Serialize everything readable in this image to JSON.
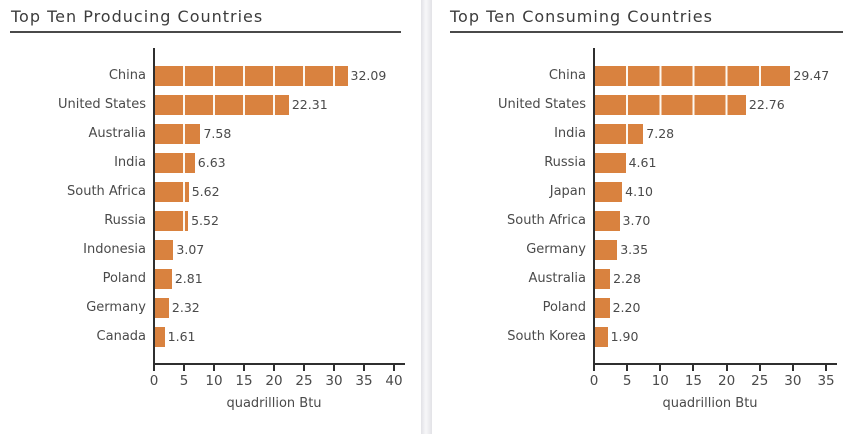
{
  "page": {
    "background": "#ffffff"
  },
  "colors": {
    "bar_fill": "#D9823F",
    "bar_segment_gap": "#FDF8F1",
    "axis_line": "#2F2F2F",
    "label_text": "#4A4A4A",
    "title_text": "#3C3C3C",
    "title_rule": "#4A4A4A",
    "panel_divider": "#E7E7EB"
  },
  "chart_data": [
    {
      "type": "bar",
      "orientation": "horizontal",
      "title": "Top Ten Producing Countries",
      "xlabel": "quadrillion Btu",
      "ylabel": "",
      "xlim": [
        0,
        40
      ],
      "xticks": [
        0,
        5,
        10,
        15,
        20,
        25,
        30,
        35,
        40
      ],
      "grid": false,
      "legend": "none",
      "bar_segment_unit": 5,
      "categories": [
        "China",
        "United States",
        "Australia",
        "India",
        "South Africa",
        "Russia",
        "Indonesia",
        "Poland",
        "Germany",
        "Canada"
      ],
      "values": [
        32.09,
        22.31,
        7.58,
        6.63,
        5.62,
        5.52,
        3.07,
        2.81,
        2.32,
        1.61
      ],
      "value_labels": [
        "32.09",
        "22.31",
        "7.58",
        "6.63",
        "5.62",
        "5.52",
        "3.07",
        "2.81",
        "2.32",
        "1.61"
      ]
    },
    {
      "type": "bar",
      "orientation": "horizontal",
      "title": "Top Ten Consuming Countries",
      "xlabel": "quadrillion Btu",
      "ylabel": "",
      "xlim": [
        0,
        35
      ],
      "xticks": [
        0,
        5,
        10,
        15,
        20,
        25,
        30,
        35
      ],
      "grid": false,
      "legend": "none",
      "bar_segment_unit": 5,
      "categories": [
        "China",
        "United States",
        "India",
        "Russia",
        "Japan",
        "South Africa",
        "Germany",
        "Australia",
        "Poland",
        "South Korea"
      ],
      "values": [
        29.47,
        22.76,
        7.28,
        4.61,
        4.1,
        3.7,
        3.35,
        2.28,
        2.2,
        1.9
      ],
      "value_labels": [
        "29.47",
        "22.76",
        "7.28",
        "4.61",
        "4.10",
        "3.70",
        "3.35",
        "2.28",
        "2.20",
        "1.90"
      ]
    }
  ]
}
